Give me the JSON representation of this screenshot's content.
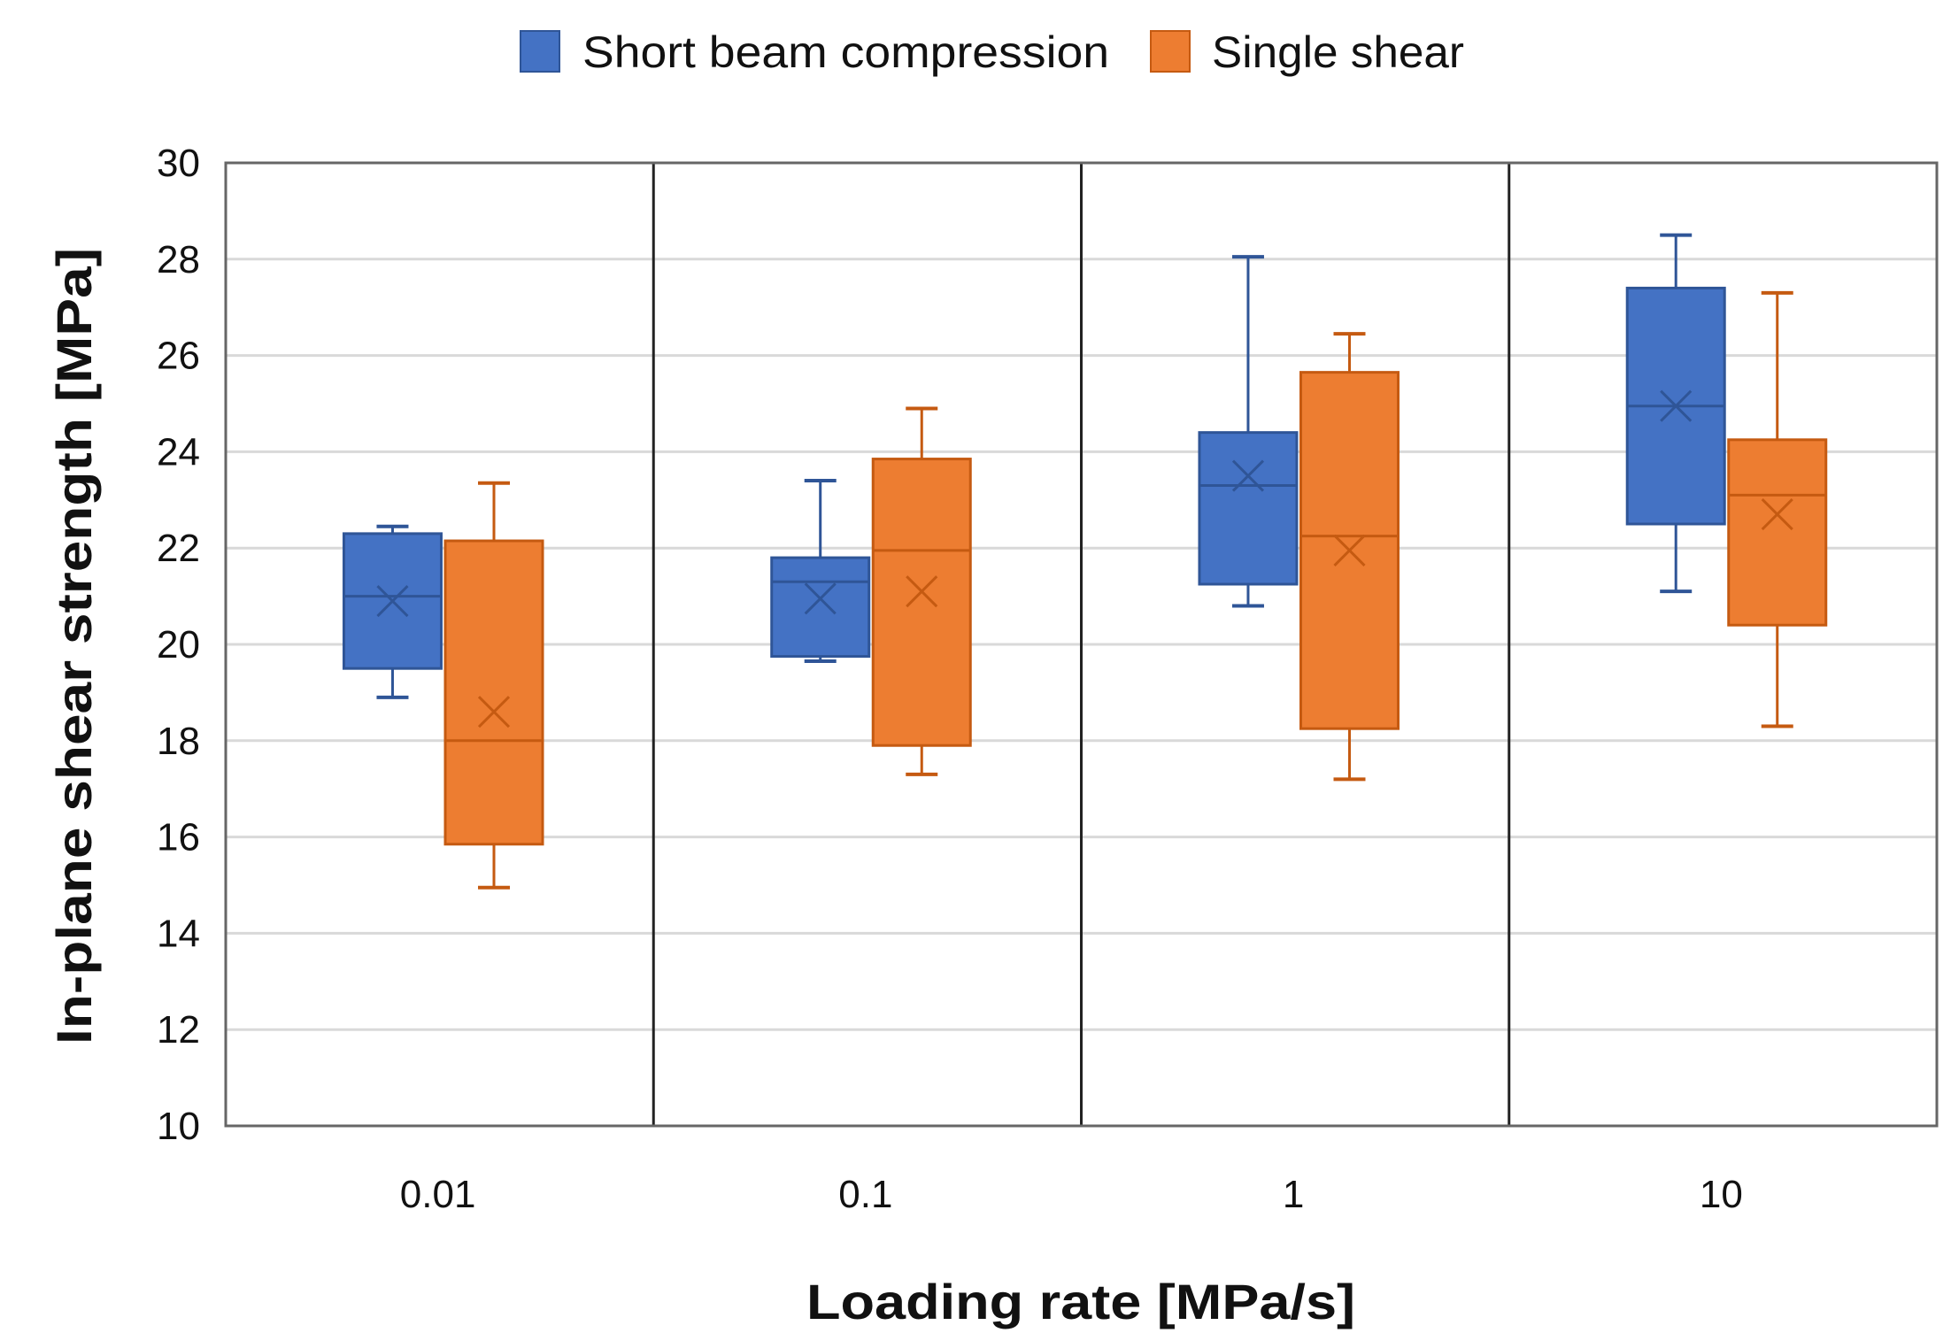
{
  "chart_data": {
    "type": "box",
    "title": "",
    "xlabel": "Loading rate [MPa/s]",
    "ylabel": "In-plane shear strength [MPa]",
    "ylim": [
      10,
      30
    ],
    "yticks": [
      "10",
      "12",
      "14",
      "16",
      "18",
      "20",
      "22",
      "24",
      "26",
      "28",
      "30"
    ],
    "categories": [
      "0.01",
      "0.1",
      "1",
      "10"
    ],
    "grid": true,
    "legend_position": "top-center",
    "series": [
      {
        "name": "Short beam compression",
        "color": "#4472C4",
        "stroke": "#2F5597",
        "boxes": [
          {
            "min": 18.9,
            "q1": 19.5,
            "median": 21.0,
            "q3": 22.3,
            "max": 22.45,
            "mean": 20.9
          },
          {
            "min": 19.65,
            "q1": 19.75,
            "median": 21.3,
            "q3": 21.8,
            "max": 23.4,
            "mean": 20.95
          },
          {
            "min": 20.8,
            "q1": 21.25,
            "median": 23.3,
            "q3": 24.4,
            "max": 28.05,
            "mean": 23.5
          },
          {
            "min": 21.1,
            "q1": 22.5,
            "median": 24.95,
            "q3": 27.4,
            "max": 28.5,
            "mean": 24.95
          }
        ]
      },
      {
        "name": "Single shear",
        "color": "#ED7D31",
        "stroke": "#C55A11",
        "boxes": [
          {
            "min": 14.95,
            "q1": 15.85,
            "median": 18.0,
            "q3": 22.15,
            "max": 23.35,
            "mean": 18.6
          },
          {
            "min": 17.3,
            "q1": 17.9,
            "median": 21.95,
            "q3": 23.85,
            "max": 24.9,
            "mean": 21.1
          },
          {
            "min": 17.2,
            "q1": 18.25,
            "median": 22.25,
            "q3": 25.65,
            "max": 26.45,
            "mean": 21.95
          },
          {
            "min": 18.3,
            "q1": 20.4,
            "median": 23.1,
            "q3": 24.25,
            "max": 27.3,
            "mean": 22.7
          }
        ]
      }
    ]
  }
}
